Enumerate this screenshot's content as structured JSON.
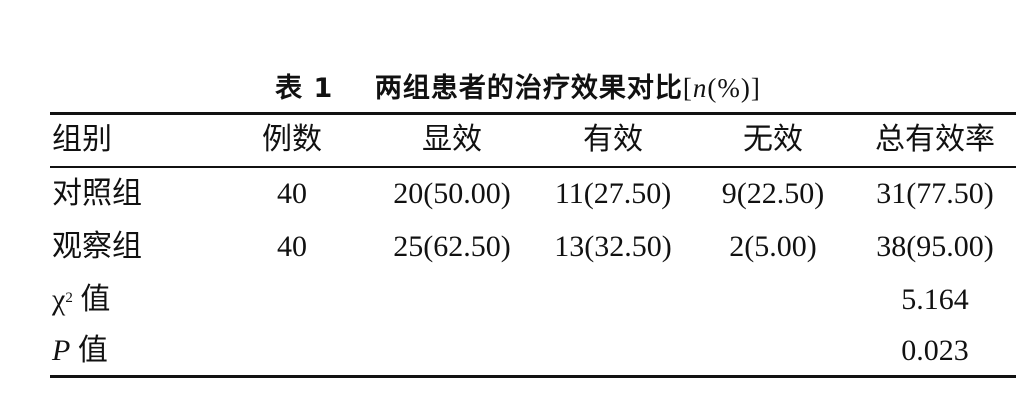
{
  "table": {
    "title_prefix": "表 1",
    "title_main": "两组患者的治疗效果对比",
    "title_unit_open": "[",
    "title_unit_var": "n",
    "title_unit_rest": "(%)]",
    "headers": [
      "组别",
      "例数",
      "显效",
      "有效",
      "无效",
      "总有效率"
    ],
    "rows": [
      [
        "对照组",
        "40",
        "20(50.00)",
        "11(27.50)",
        "9(22.50)",
        "31(77.50)"
      ],
      [
        "观察组",
        "40",
        "25(62.50)",
        "13(32.50)",
        "2(5.00)",
        "38(95.00)"
      ]
    ],
    "chi_label_symbol": "χ",
    "chi_label_sup": "2",
    "chi_label_text": "值",
    "chi_value": "5.164",
    "p_label_symbol": "P",
    "p_label_text": "值",
    "p_value": "0.023"
  }
}
